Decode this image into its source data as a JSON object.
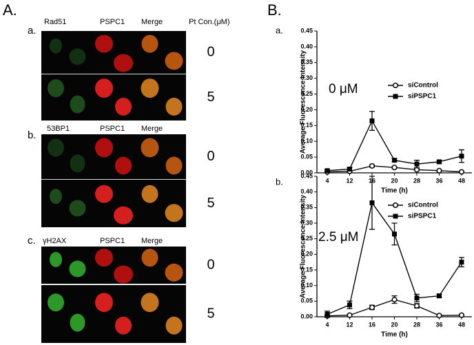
{
  "panel_a": {
    "label": "A.",
    "concentration_header": "Pt Con.(μM)",
    "groups": [
      {
        "label": "a.",
        "channels": [
          "Rad51",
          "PSPC1",
          "Merge"
        ],
        "rows": [
          0,
          5
        ]
      },
      {
        "label": "b.",
        "channels": [
          "53BP1",
          "PSPC1",
          "Merge"
        ],
        "rows": [
          0,
          5
        ]
      },
      {
        "label": "c.",
        "channels": [
          "γH2AX",
          "PSPC1",
          "Merge"
        ],
        "rows": [
          0,
          5
        ]
      }
    ]
  },
  "panel_b": {
    "label": "B."
  },
  "chart_data": [
    {
      "type": "line",
      "label": "a.",
      "annotation": "0 μM",
      "xlabel": "Time (h)",
      "ylabel": "Average Fluorescence Intensity",
      "categories": [
        4,
        12,
        16,
        20,
        28,
        36,
        48
      ],
      "ylim": [
        0,
        0.45
      ],
      "yticks": [
        {
          "value": 0,
          "label": "0.00"
        },
        {
          "value": 0.05,
          "label": "0.05"
        },
        {
          "value": 0.1,
          "label": "0.10"
        },
        {
          "value": 0.15,
          "label": "0.15"
        },
        {
          "value": 0.2,
          "label": "0.20"
        },
        {
          "value": 0.25,
          "label": "0.25"
        },
        {
          "value": 0.3,
          "label": "0.30"
        },
        {
          "value": 0.35,
          "label": "0.35"
        },
        {
          "value": 0.4,
          "label": "0.40"
        },
        {
          "value": 0.45,
          "label": "0.45"
        }
      ],
      "series": [
        {
          "name": "siControl",
          "color": "#000000",
          "marker": "circle",
          "values": [
            0.003,
            0.005,
            0.022,
            0.017,
            0.01,
            0.007,
            0.003
          ],
          "errors": [
            0.002,
            0.002,
            0.004,
            0.003,
            0.003,
            0.002,
            0.002
          ]
        },
        {
          "name": "siPSPC1",
          "color": "#000000",
          "marker": "square",
          "values": [
            0.007,
            0.012,
            0.165,
            0.04,
            0.028,
            0.035,
            0.053
          ],
          "errors": [
            0.004,
            0.005,
            0.03,
            0.005,
            0.012,
            0.005,
            0.02
          ]
        }
      ]
    },
    {
      "type": "line",
      "label": "b.",
      "annotation": "2.5 μM",
      "xlabel": "Time (h)",
      "ylabel": "Average Fluorescence Intensity",
      "categories": [
        4,
        12,
        16,
        20,
        28,
        36,
        48
      ],
      "ylim": [
        0,
        0.45
      ],
      "yticks": [
        {
          "value": 0,
          "label": "0.00"
        },
        {
          "value": 0.05,
          "label": "0.05"
        },
        {
          "value": 0.1,
          "label": "0.10"
        },
        {
          "value": 0.15,
          "label": "0.15"
        },
        {
          "value": 0.2,
          "label": "0.20"
        },
        {
          "value": 0.25,
          "label": "0.25"
        },
        {
          "value": 0.3,
          "label": "0.30"
        },
        {
          "value": 0.35,
          "label": "0.35"
        },
        {
          "value": 0.4,
          "label": "0.40"
        },
        {
          "value": 0.45,
          "label": "0.45"
        }
      ],
      "series": [
        {
          "name": "siControl",
          "color": "#000000",
          "marker": "circle",
          "values": [
            0.003,
            0.005,
            0.03,
            0.055,
            0.035,
            0.004,
            0.005
          ],
          "errors": [
            0.003,
            0.003,
            0.007,
            0.012,
            0.007,
            0.002,
            0.002
          ]
        },
        {
          "name": "siPSPC1",
          "color": "#000000",
          "marker": "square",
          "values": [
            0.008,
            0.038,
            0.365,
            0.265,
            0.06,
            0.067,
            0.175
          ],
          "errors": [
            0.01,
            0.012,
            0.085,
            0.035,
            0.012,
            0.005,
            0.015
          ]
        }
      ]
    }
  ]
}
